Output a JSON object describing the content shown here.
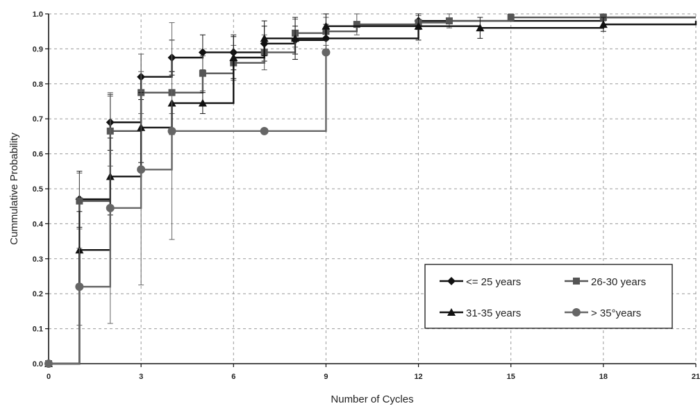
{
  "chart_data": {
    "type": "line",
    "step": true,
    "title": "",
    "xlabel": "Number of Cycles",
    "ylabel": "Cummulative Probability",
    "xlim": [
      0,
      21
    ],
    "ylim": [
      0,
      1
    ],
    "xticks": [
      0,
      3,
      6,
      9,
      12,
      15,
      18,
      21
    ],
    "yticks": [
      "0.0",
      "0.1",
      "0.2",
      "0.3",
      "0.4",
      "0.5",
      "0.6",
      "0.7",
      "0.8",
      "0.9",
      "1.0"
    ],
    "grid": true,
    "legend_position": "bottom-right",
    "series": [
      {
        "name": "<= 25 years",
        "marker": "diamond",
        "color": "#111111",
        "x": [
          0,
          1,
          2,
          3,
          4,
          5,
          6,
          7,
          8,
          9,
          12,
          18,
          21
        ],
        "y": [
          0,
          0.47,
          0.69,
          0.82,
          0.875,
          0.89,
          0.89,
          0.915,
          0.925,
          0.93,
          0.98,
          0.99,
          0.99
        ],
        "err": [
          0,
          0.08,
          0.08,
          0.065,
          0.05,
          0.05,
          0.05,
          0.05,
          0.04,
          0.04,
          0.02,
          0.01,
          0
        ]
      },
      {
        "name": "26-30 years",
        "marker": "square",
        "color": "#555555",
        "x": [
          0,
          1,
          2,
          3,
          4,
          5,
          6,
          7,
          8,
          9,
          10,
          12,
          13,
          15,
          18,
          21
        ],
        "y": [
          0,
          0.465,
          0.665,
          0.775,
          0.775,
          0.83,
          0.86,
          0.89,
          0.945,
          0.95,
          0.97,
          0.975,
          0.98,
          0.99,
          0.99,
          0.99
        ],
        "err": [
          0,
          0.08,
          0.1,
          0.06,
          0.06,
          0.05,
          0.05,
          0.05,
          0.04,
          0.04,
          0.03,
          0.02,
          0.02,
          0.01,
          0.01,
          0
        ]
      },
      {
        "name": "31-35 years",
        "marker": "triangle",
        "color": "#111111",
        "x": [
          0,
          1,
          2,
          3,
          4,
          5,
          6,
          7,
          8,
          9,
          12,
          14,
          18,
          21
        ],
        "y": [
          0,
          0.325,
          0.535,
          0.675,
          0.745,
          0.745,
          0.875,
          0.93,
          0.93,
          0.965,
          0.965,
          0.96,
          0.97,
          0.98
        ],
        "err": [
          0,
          0.11,
          0.11,
          0.1,
          0.09,
          0.03,
          0.06,
          0.05,
          0.06,
          0.04,
          0.04,
          0.03,
          0.02,
          0
        ]
      },
      {
        "name": "> 35°years",
        "marker": "circle",
        "color": "#666666",
        "x": [
          0,
          1,
          2,
          3,
          4,
          7,
          9
        ],
        "y": [
          0,
          0.22,
          0.445,
          0.555,
          0.665,
          0.665,
          0.89
        ],
        "err": [
          0,
          0.11,
          0.33,
          0.33,
          0.31,
          0,
          0
        ]
      }
    ]
  }
}
